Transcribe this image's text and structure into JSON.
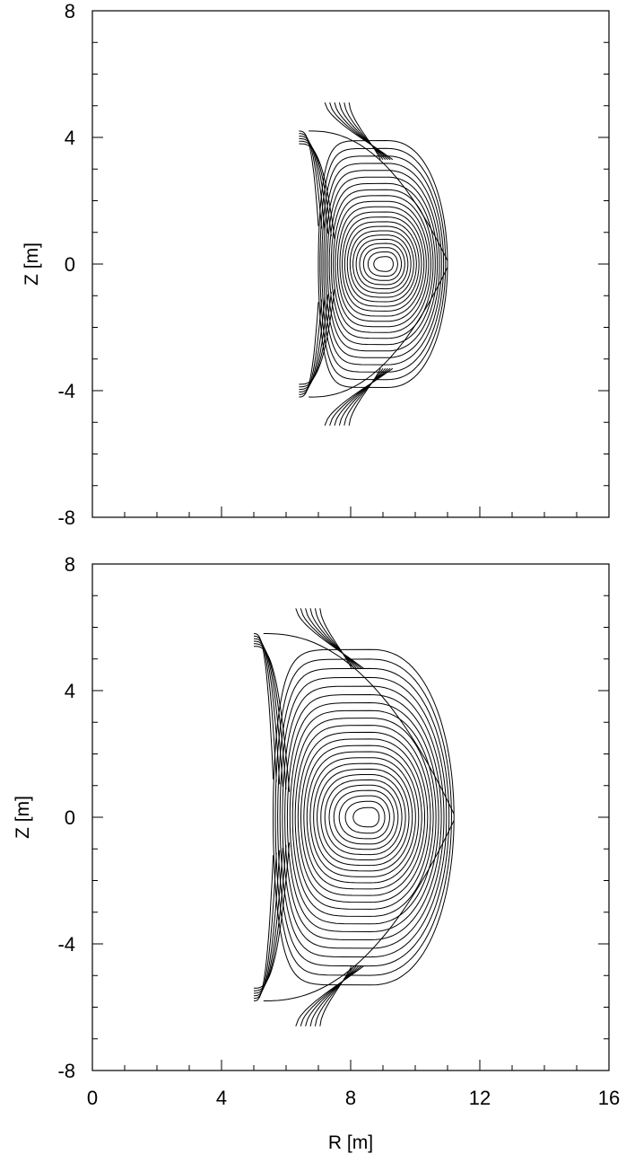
{
  "chart_data": [
    {
      "type": "contour",
      "panel": "top",
      "xlabel": "",
      "ylabel": "Z [m]",
      "xlim": [
        0,
        16
      ],
      "ylim": [
        -8,
        8
      ],
      "x_ticks": [],
      "y_ticks": [
        "8",
        "4",
        "0",
        "-4",
        "-8"
      ],
      "plasma": {
        "r_inner": 7.0,
        "r_outer": 11.0,
        "r_axis": 9.1,
        "z_top": 3.9,
        "z_bottom": -3.9,
        "x_point_r": 7.2,
        "x_point_z": 4.2,
        "divertor_leg_tip_z": 5.1,
        "inner_leg_r": 6.4,
        "n_flux_surfaces": 22,
        "n_divertor_legs": 6
      }
    },
    {
      "type": "contour",
      "panel": "bottom",
      "xlabel": "R [m]",
      "ylabel": "Z [m]",
      "xlim": [
        0,
        16
      ],
      "ylim": [
        -8,
        8
      ],
      "x_ticks": [
        "0",
        "4",
        "8",
        "12",
        "16"
      ],
      "y_ticks": [
        "8",
        "4",
        "0",
        "-4",
        "-8"
      ],
      "plasma": {
        "r_inner": 5.6,
        "r_outer": 11.2,
        "r_axis": 8.6,
        "z_top": 5.3,
        "z_bottom": -5.3,
        "x_point_r": 6.3,
        "x_point_z": 5.8,
        "divertor_leg_tip_z": 6.6,
        "inner_leg_r": 5.0,
        "n_flux_surfaces": 24,
        "n_divertor_legs": 6
      }
    }
  ]
}
